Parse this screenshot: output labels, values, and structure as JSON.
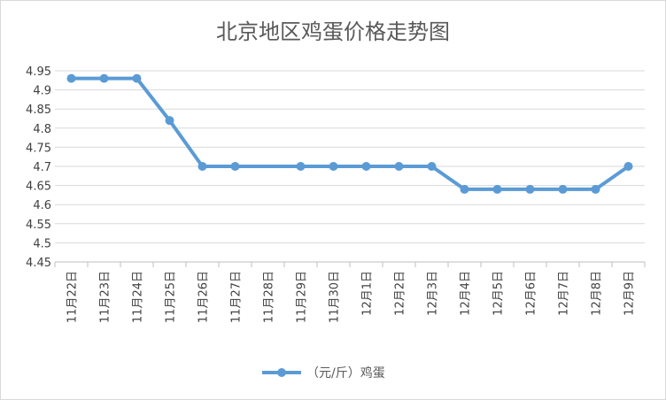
{
  "chart_data": {
    "type": "line",
    "title": "北京地区鸡蛋价格走势图",
    "xlabel": "",
    "ylabel": "",
    "categories": [
      "11月22日",
      "11月23日",
      "11月24日",
      "11月25日",
      "11月26日",
      "11月27日",
      "11月28日",
      "11月29日",
      "11月30日",
      "12月1日",
      "12月2日",
      "12月3日",
      "12月4日",
      "12月5日",
      "12月6日",
      "12月7日",
      "12月8日",
      "12月9日"
    ],
    "series": [
      {
        "name": "（元/斤）鸡蛋",
        "values": [
          4.93,
          4.93,
          4.93,
          4.82,
          4.7,
          4.7,
          null,
          4.7,
          4.7,
          4.7,
          4.7,
          4.7,
          4.64,
          4.64,
          4.64,
          4.64,
          4.64,
          4.7
        ]
      }
    ],
    "ylim": [
      4.45,
      4.95
    ],
    "yticks": [
      "4.45",
      "4.5",
      "4.55",
      "4.6",
      "4.65",
      "4.7",
      "4.75",
      "4.8",
      "4.85",
      "4.9",
      "4.95"
    ],
    "grid": true,
    "legend_position": "bottom",
    "line_color": "#5b9bd5"
  }
}
